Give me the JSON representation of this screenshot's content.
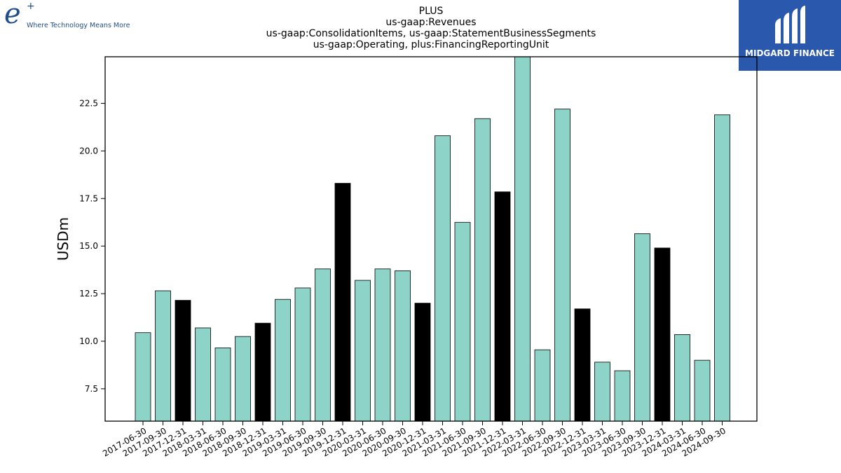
{
  "logos": {
    "left": {
      "mark": "e",
      "superscript": "+",
      "tagline": "Where Technology Means More"
    },
    "right": {
      "text": "MIDGARD FINANCE",
      "background_color": "#2a58ad"
    }
  },
  "chart_data": {
    "type": "bar",
    "title_lines": [
      "PLUS",
      "us-gaap:Revenues",
      "us-gaap:ConsolidationItems, us-gaap:StatementBusinessSegments",
      "us-gaap:Operating, plus:FinancingReportingUnit"
    ],
    "xlabel": "",
    "ylabel": "USDm",
    "ylim": [
      5.8,
      24.95
    ],
    "yticks": [
      7.5,
      10.0,
      12.5,
      15.0,
      17.5,
      20.0,
      22.5
    ],
    "ytick_labels": [
      "7.5",
      "10.0",
      "12.5",
      "15.0",
      "17.5",
      "20.0",
      "22.5"
    ],
    "grid": false,
    "colors": {
      "quarter": "#8dd3c7",
      "year_end": "#000000",
      "edge": "#000000"
    },
    "categories": [
      "2017-06-30",
      "2017-09-30",
      "2017-12-31",
      "2018-03-31",
      "2018-06-30",
      "2018-09-30",
      "2018-12-31",
      "2019-03-31",
      "2019-06-30",
      "2019-09-30",
      "2019-12-31",
      "2020-03-31",
      "2020-06-30",
      "2020-09-30",
      "2020-12-31",
      "2021-03-31",
      "2021-06-30",
      "2021-09-30",
      "2021-12-31",
      "2022-03-31",
      "2022-06-30",
      "2022-09-30",
      "2022-12-31",
      "2023-03-31",
      "2023-06-30",
      "2023-09-30",
      "2023-12-31",
      "2024-03-31",
      "2024-06-30",
      "2024-09-30"
    ],
    "values": [
      10.45,
      12.65,
      12.15,
      10.7,
      9.65,
      10.25,
      10.95,
      12.2,
      12.8,
      13.8,
      18.3,
      13.2,
      13.8,
      13.7,
      12.0,
      20.8,
      16.25,
      21.7,
      17.85,
      24.95,
      9.55,
      22.2,
      11.7,
      8.9,
      8.45,
      15.65,
      14.9,
      10.35,
      9.0,
      21.9
    ],
    "highlight": [
      false,
      false,
      true,
      false,
      false,
      false,
      true,
      false,
      false,
      false,
      true,
      false,
      false,
      false,
      true,
      false,
      false,
      false,
      true,
      false,
      false,
      false,
      true,
      false,
      false,
      false,
      true,
      false,
      false,
      false
    ]
  }
}
